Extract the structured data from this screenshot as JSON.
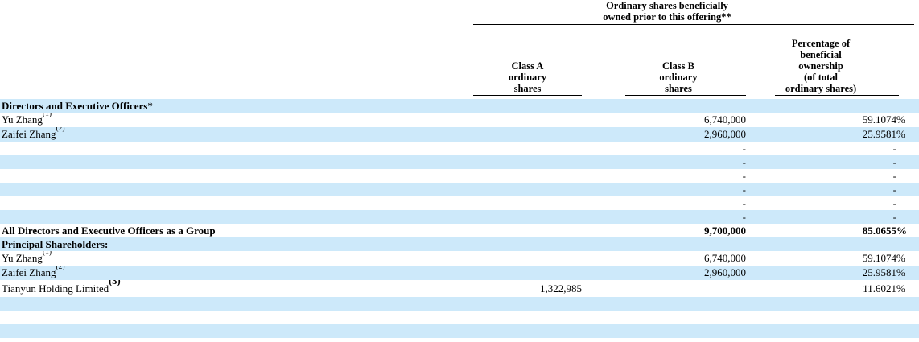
{
  "table": {
    "span_header": {
      "line1": "Ordinary shares beneficially",
      "line2": "owned prior to this offering**"
    },
    "columns": {
      "class_a": {
        "lines": [
          "Class A",
          "ordinary",
          "shares"
        ]
      },
      "class_b": {
        "lines": [
          "Class B",
          "ordinary",
          "shares"
        ]
      },
      "pct": {
        "lines": [
          "Percentage of",
          "beneficial",
          "ownership",
          "(of total",
          "ordinary shares)"
        ]
      }
    },
    "rows": [
      {
        "name": "Directors and Executive Officers*",
        "sup": "",
        "a": "",
        "b": "",
        "p": "",
        "psfx": "",
        "bold": true,
        "shade": true,
        "sup_large": false
      },
      {
        "name": "Yu Zhang",
        "sup": "(1)",
        "a": "",
        "b": "6,740,000",
        "p": "59.1074",
        "psfx": "%",
        "bold": false,
        "shade": false,
        "sup_large": false
      },
      {
        "name": "Zaifei Zhang",
        "sup": "(2)",
        "a": "",
        "b": "2,960,000",
        "p": "25.9581",
        "psfx": "%",
        "bold": false,
        "shade": true,
        "sup_large": false
      },
      {
        "name": "",
        "sup": "",
        "a": "",
        "b": "-",
        "p": "-",
        "psfx": "",
        "bold": false,
        "shade": false,
        "sup_large": false
      },
      {
        "name": "",
        "sup": "",
        "a": "",
        "b": "-",
        "p": "-",
        "psfx": "",
        "bold": false,
        "shade": true,
        "sup_large": false
      },
      {
        "name": "",
        "sup": "",
        "a": "",
        "b": "-",
        "p": "-",
        "psfx": "",
        "bold": false,
        "shade": false,
        "sup_large": false
      },
      {
        "name": "",
        "sup": "",
        "a": "",
        "b": "-",
        "p": "-",
        "psfx": "",
        "bold": false,
        "shade": true,
        "sup_large": false
      },
      {
        "name": "",
        "sup": "",
        "a": "",
        "b": "-",
        "p": "-",
        "psfx": "",
        "bold": false,
        "shade": false,
        "sup_large": false
      },
      {
        "name": "",
        "sup": "",
        "a": "",
        "b": "-",
        "p": "-",
        "psfx": "",
        "bold": false,
        "shade": true,
        "sup_large": false
      },
      {
        "name": "All Directors and Executive Officers as a Group",
        "sup": "",
        "a": "",
        "b": "9,700,000",
        "p": "85.0655",
        "psfx": "%",
        "bold": true,
        "shade": false,
        "sup_large": false
      },
      {
        "name": "Principal Shareholders:",
        "sup": "",
        "a": "",
        "b": "",
        "p": "",
        "psfx": "",
        "bold": true,
        "shade": true,
        "sup_large": false
      },
      {
        "name": "Yu Zhang",
        "sup": "(1)",
        "a": "",
        "b": "6,740,000",
        "p": "59.1074",
        "psfx": "%",
        "bold": false,
        "shade": false,
        "sup_large": false
      },
      {
        "name": "Zaifei Zhang",
        "sup": "(2)",
        "a": "",
        "b": "2,960,000",
        "p": "25.9581",
        "psfx": "%",
        "bold": false,
        "shade": true,
        "sup_large": false
      },
      {
        "name": "Tianyun Holding Limited",
        "sup": "(3)",
        "a": "1,322,985",
        "b": "",
        "p": "11.6021",
        "psfx": "%",
        "bold": false,
        "shade": false,
        "sup_large": true
      },
      {
        "name": "",
        "sup": "",
        "a": "",
        "b": "",
        "p": "",
        "psfx": "",
        "bold": false,
        "shade": true,
        "sup_large": false
      },
      {
        "name": "",
        "sup": "",
        "a": "",
        "b": "",
        "p": "",
        "psfx": "",
        "bold": false,
        "shade": false,
        "sup_large": false
      },
      {
        "name": "",
        "sup": "",
        "a": "",
        "b": "",
        "p": "",
        "psfx": "",
        "bold": false,
        "shade": true,
        "sup_large": false
      }
    ]
  },
  "colors": {
    "row_highlight": "#CDE9FA",
    "text": "#000000",
    "rule": "#000000"
  }
}
